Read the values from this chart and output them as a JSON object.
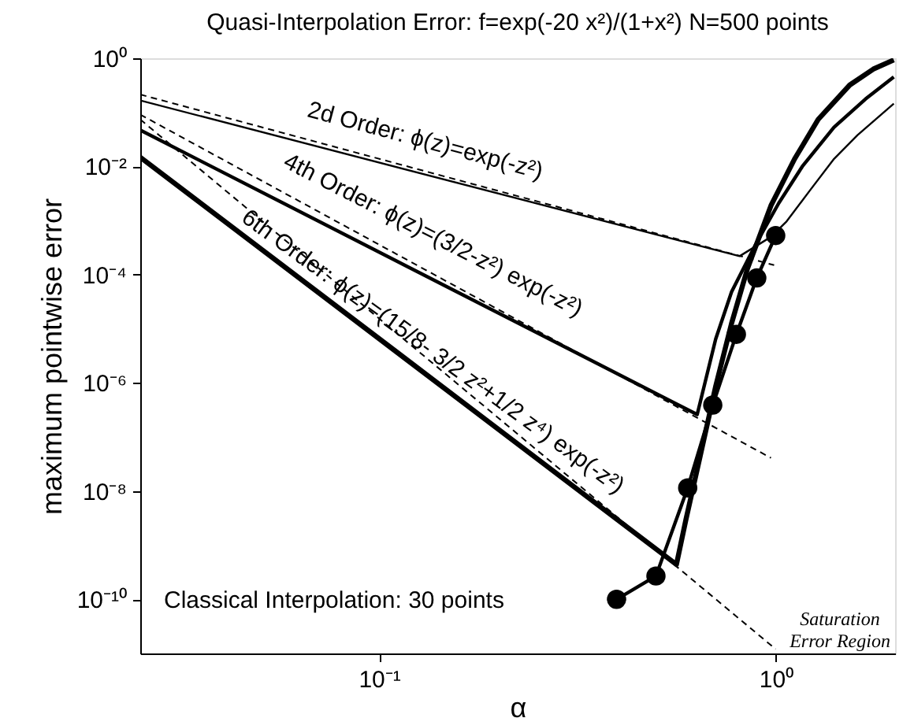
{
  "chart_data": {
    "type": "line",
    "title": "Quasi-Interpolation Error: f=exp(-20 x²)/(1+x²) N=500 points",
    "xlabel": "α",
    "ylabel": "maximum pointwise error",
    "log": "xy",
    "grid": false,
    "xlim": [
      0.025,
      2
    ],
    "xticks": [
      {
        "value": 0.1,
        "label": "10⁻¹"
      },
      {
        "value": 1,
        "label": "10⁰"
      }
    ],
    "ylim": [
      1e-11,
      1
    ],
    "yticks": [
      {
        "value": 1,
        "label": "10⁰"
      },
      {
        "value": 0.01,
        "label": "10⁻²"
      },
      {
        "value": 0.0001,
        "label": "10⁻⁴"
      },
      {
        "value": 1e-06,
        "label": "10⁻⁶"
      },
      {
        "value": 1e-08,
        "label": "10⁻⁸"
      },
      {
        "value": 1e-10,
        "label": "10⁻¹⁰"
      }
    ],
    "series": [
      {
        "color": "#000000",
        "line_style": "solid",
        "marker": "none",
        "x": [
          0.025,
          0.811,
          0.973,
          1.066,
          1.223,
          1.403,
          1.608,
          1.985
        ],
        "values": [
          0.166,
          0.00022,
          0.0005,
          0.00097,
          0.0037,
          0.0138,
          0.038,
          0.145
        ]
      },
      {
        "color": "#000000",
        "line_style": "solid",
        "marker": "none",
        "x": [
          0.025,
          0.634,
          0.706,
          0.774,
          0.888,
          1.018,
          1.167,
          1.403,
          1.684,
          1.985
        ],
        "values": [
          0.047,
          2.6e-07,
          6.5e-06,
          4.8e-05,
          0.00035,
          0.0021,
          0.01,
          0.053,
          0.176,
          0.45
        ]
      },
      {
        "color": "#000000",
        "line_style": "solid",
        "marker": "none",
        "x": [
          0.025,
          0.562,
          0.594,
          0.645,
          0.706,
          0.774,
          0.849,
          0.973,
          1.116,
          1.28,
          1.537,
          1.762,
          1.985
        ],
        "values": [
          0.0148,
          4.4e-10,
          3e-09,
          4.4e-08,
          8.7e-07,
          1.26e-05,
          0.00013,
          0.0019,
          0.0138,
          0.074,
          0.32,
          0.63,
          0.93
        ]
      },
      {
        "color": "#000000",
        "line_style": "dashed",
        "marker": "none",
        "x": [
          0.025,
          0.991
        ],
        "values": [
          0.214,
          0.00015
        ]
      },
      {
        "color": "#000000",
        "line_style": "dashed",
        "marker": "none",
        "x": [
          0.025,
          0.973
        ],
        "values": [
          0.091,
          4.1e-08
        ]
      },
      {
        "color": "#000000",
        "line_style": "dashed",
        "marker": "none",
        "x": [
          0.025,
          1.0
        ],
        "values": [
          0.074,
          1.2e-11
        ]
      },
      {
        "color": "#000000",
        "line_style": "solid",
        "marker": "circle",
        "x": [
          0.397,
          0.499,
          0.6,
          0.694,
          0.796,
          0.896,
          1.0
        ],
        "values": [
          1e-10,
          2.7e-10,
          1.15e-08,
          3.9e-07,
          7.9e-06,
          8.7e-05,
          0.00053
        ]
      }
    ],
    "annotations": [
      "2d Order: ϕ(z)=exp(-z²)",
      "4th Order: ϕ(z)=(3/2-z²) exp(-z²)",
      "6th Order: ϕ(z)=(15/8- 3/2 z²+1/2 z⁴) exp(-z²)",
      "Classical Interpolation: 30 points",
      "Saturation\nError Region"
    ]
  }
}
